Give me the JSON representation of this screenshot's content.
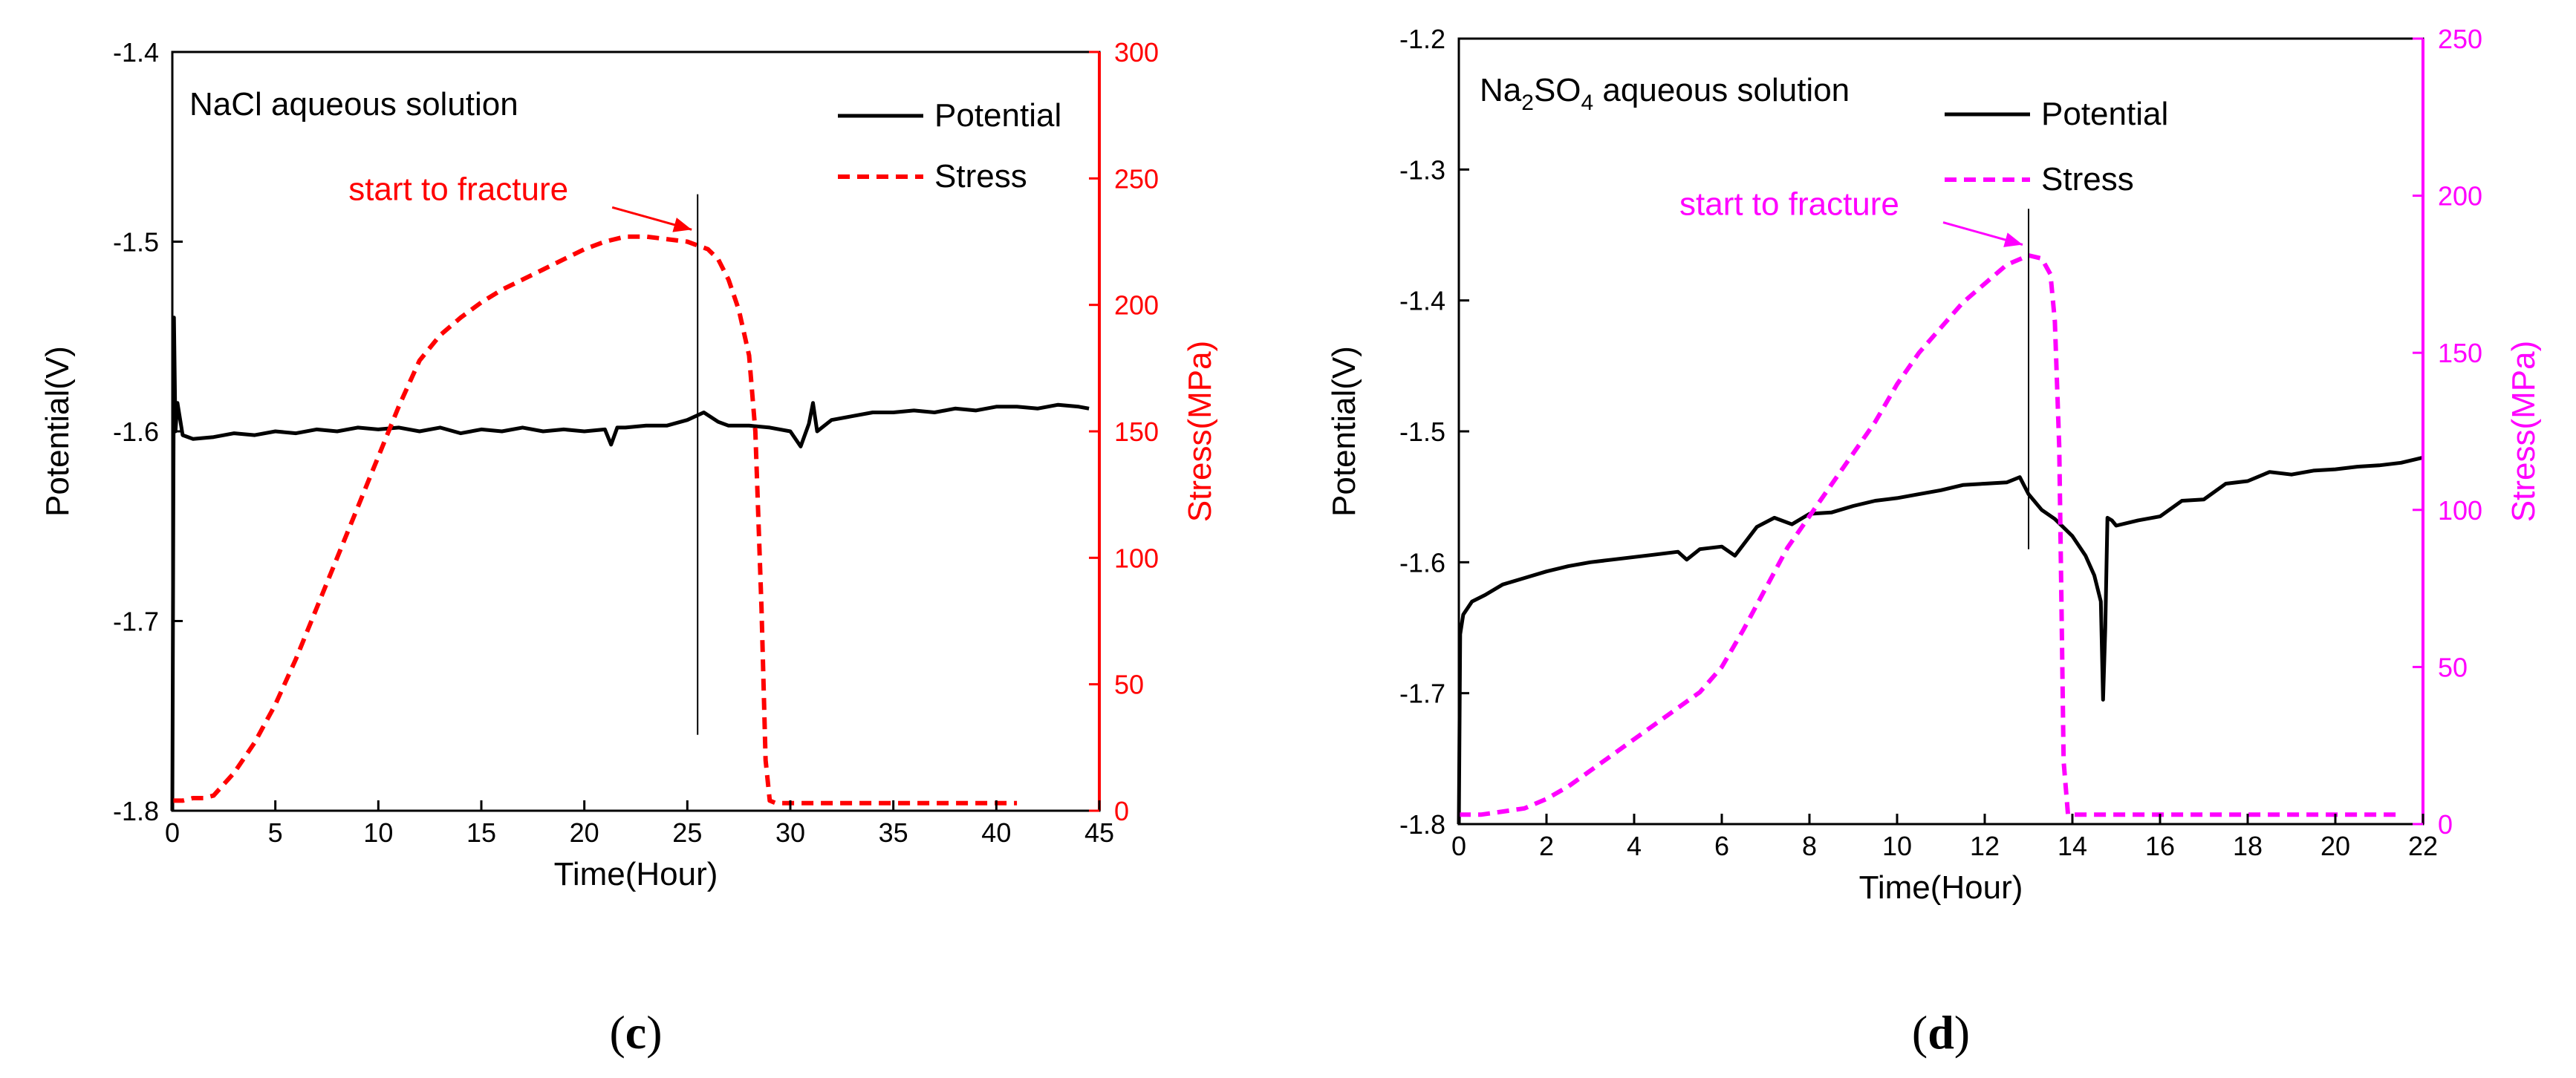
{
  "chart_data": [
    {
      "type": "line",
      "panel": "(c)",
      "panel_letter": "c",
      "title": "NaCl aqueous solution",
      "xlabel": "Time(Hour)",
      "ylabel": "Potential(V)",
      "y2label": "Stress(MPa)",
      "xlim": [
        0,
        45
      ],
      "ylim": [
        -1.8,
        -1.4
      ],
      "y2lim": [
        0,
        300
      ],
      "xticks": [
        0,
        5,
        10,
        15,
        20,
        25,
        30,
        35,
        40,
        45
      ],
      "yticks": [
        -1.8,
        -1.7,
        -1.6,
        -1.5,
        -1.4
      ],
      "y2ticks": [
        0,
        50,
        100,
        150,
        200,
        250,
        300
      ],
      "accent_color": "#ff0000",
      "legend": [
        {
          "label": "Potential",
          "color": "#000000",
          "style": "solid"
        },
        {
          "label": "Stress",
          "color": "#ff0000",
          "style": "dashed"
        }
      ],
      "annotation": {
        "text": "start to fracture",
        "x": 25.5,
        "y2": 228
      },
      "marker_line": {
        "x": 25.5,
        "y_from": -1.76,
        "y_to": -1.475
      },
      "series": [
        {
          "name": "Potential",
          "axis": "left",
          "x": [
            0,
            0.08,
            0.15,
            0.25,
            0.5,
            1,
            2,
            3,
            4,
            5,
            6,
            7,
            8,
            9,
            10,
            11,
            12,
            13,
            14,
            15,
            16,
            17,
            18,
            19,
            20,
            21,
            21.3,
            21.6,
            22,
            23,
            24,
            25,
            25.8,
            26.5,
            27,
            28,
            29,
            30,
            30.5,
            30.9,
            31.1,
            31.3,
            32,
            33,
            34,
            35,
            36,
            37,
            38,
            39,
            40,
            41,
            42,
            43,
            44,
            44.5
          ],
          "values": [
            -1.8,
            -1.54,
            -1.6,
            -1.585,
            -1.602,
            -1.604,
            -1.603,
            -1.601,
            -1.602,
            -1.6,
            -1.601,
            -1.599,
            -1.6,
            -1.598,
            -1.599,
            -1.598,
            -1.6,
            -1.598,
            -1.601,
            -1.599,
            -1.6,
            -1.598,
            -1.6,
            -1.599,
            -1.6,
            -1.599,
            -1.607,
            -1.598,
            -1.598,
            -1.597,
            -1.597,
            -1.594,
            -1.59,
            -1.595,
            -1.597,
            -1.597,
            -1.598,
            -1.6,
            -1.608,
            -1.596,
            -1.585,
            -1.6,
            -1.594,
            -1.592,
            -1.59,
            -1.59,
            -1.589,
            -1.59,
            -1.588,
            -1.589,
            -1.587,
            -1.587,
            -1.588,
            -1.586,
            -1.587,
            -1.588
          ]
        },
        {
          "name": "Stress",
          "axis": "right",
          "x": [
            0,
            0.5,
            1,
            1.5,
            2,
            3,
            4,
            5,
            6,
            7,
            8,
            9,
            10,
            11,
            12,
            13,
            14,
            15,
            16,
            17,
            18,
            19,
            20,
            21,
            22,
            23,
            24,
            25,
            26,
            26.5,
            27,
            27.5,
            28,
            28.3,
            28.6,
            28.8,
            29,
            29.3,
            30,
            35,
            41
          ],
          "values": [
            4,
            4,
            5,
            5,
            6,
            15,
            27,
            42,
            60,
            80,
            100,
            120,
            140,
            160,
            178,
            188,
            195,
            201,
            206,
            210,
            214,
            218,
            222,
            225,
            227,
            227,
            226,
            225,
            222,
            218,
            210,
            198,
            180,
            150,
            80,
            20,
            4,
            3,
            3,
            3,
            3
          ]
        }
      ]
    },
    {
      "type": "line",
      "panel": "(d)",
      "panel_letter": "d",
      "title": "Na2SO4 aqueous solution",
      "title_parts": [
        "Na",
        "2",
        "SO",
        "4",
        " aqueous solution"
      ],
      "xlabel": "Time(Hour)",
      "ylabel": "Potential(V)",
      "y2label": "Stress(MPa)",
      "xlim": [
        0,
        22
      ],
      "ylim": [
        -1.8,
        -1.2
      ],
      "y2lim": [
        0,
        250
      ],
      "xticks": [
        0,
        2,
        4,
        6,
        8,
        10,
        12,
        14,
        16,
        18,
        20,
        22
      ],
      "yticks": [
        -1.8,
        -1.7,
        -1.6,
        -1.5,
        -1.4,
        -1.3,
        -1.2
      ],
      "y2ticks": [
        0,
        50,
        100,
        150,
        200,
        250
      ],
      "accent_color": "#ff00ff",
      "legend": [
        {
          "label": "Potential",
          "color": "#000000",
          "style": "solid"
        },
        {
          "label": "Stress",
          "color": "#ff00ff",
          "style": "dashed"
        }
      ],
      "annotation": {
        "text": "start to fracture",
        "x": 13.0,
        "y2": 183
      },
      "marker_line": {
        "x": 13.0,
        "y_from": -1.59,
        "y_to": -1.33
      },
      "series": [
        {
          "name": "Potential",
          "axis": "left",
          "x": [
            0,
            0.03,
            0.1,
            0.3,
            0.6,
            1,
            1.5,
            2,
            2.5,
            3,
            3.5,
            4,
            4.5,
            5,
            5.2,
            5.5,
            6,
            6.3,
            6.8,
            7.2,
            7.6,
            8,
            8.5,
            9,
            9.5,
            10,
            10.5,
            11,
            11.5,
            12,
            12.5,
            12.8,
            13,
            13.3,
            13.6,
            14,
            14.3,
            14.5,
            14.65,
            14.7,
            14.75,
            14.8,
            14.9,
            15,
            15.5,
            16,
            16.5,
            17,
            17.5,
            18,
            18.5,
            19,
            19.5,
            20,
            20.5,
            21,
            21.5,
            22
          ],
          "values": [
            -1.8,
            -1.655,
            -1.64,
            -1.63,
            -1.625,
            -1.617,
            -1.612,
            -1.607,
            -1.603,
            -1.6,
            -1.598,
            -1.596,
            -1.594,
            -1.592,
            -1.598,
            -1.59,
            -1.588,
            -1.595,
            -1.573,
            -1.566,
            -1.571,
            -1.563,
            -1.562,
            -1.557,
            -1.553,
            -1.551,
            -1.548,
            -1.545,
            -1.541,
            -1.54,
            -1.539,
            -1.535,
            -1.548,
            -1.56,
            -1.567,
            -1.58,
            -1.595,
            -1.61,
            -1.63,
            -1.705,
            -1.65,
            -1.566,
            -1.568,
            -1.572,
            -1.568,
            -1.565,
            -1.553,
            -1.552,
            -1.54,
            -1.538,
            -1.531,
            -1.533,
            -1.53,
            -1.529,
            -1.527,
            -1.526,
            -1.524,
            -1.52
          ]
        },
        {
          "name": "Stress",
          "axis": "right",
          "x": [
            0,
            0.5,
            1,
            1.5,
            2,
            2.5,
            3,
            3.5,
            4,
            4.5,
            5,
            5.5,
            6,
            6.5,
            7,
            7.5,
            8,
            8.5,
            9,
            9.5,
            10,
            10.5,
            11,
            11.5,
            12,
            12.5,
            13,
            13.3,
            13.5,
            13.6,
            13.7,
            13.75,
            13.8,
            13.9,
            14,
            16,
            18,
            20,
            21.5
          ],
          "values": [
            3,
            3,
            4,
            5,
            8,
            12,
            17,
            22,
            27,
            32,
            37,
            42,
            50,
            62,
            75,
            88,
            98,
            108,
            118,
            128,
            140,
            150,
            158,
            166,
            172,
            178,
            181,
            180,
            175,
            160,
            120,
            70,
            20,
            3,
            3,
            3,
            3,
            3,
            3
          ]
        }
      ]
    }
  ]
}
